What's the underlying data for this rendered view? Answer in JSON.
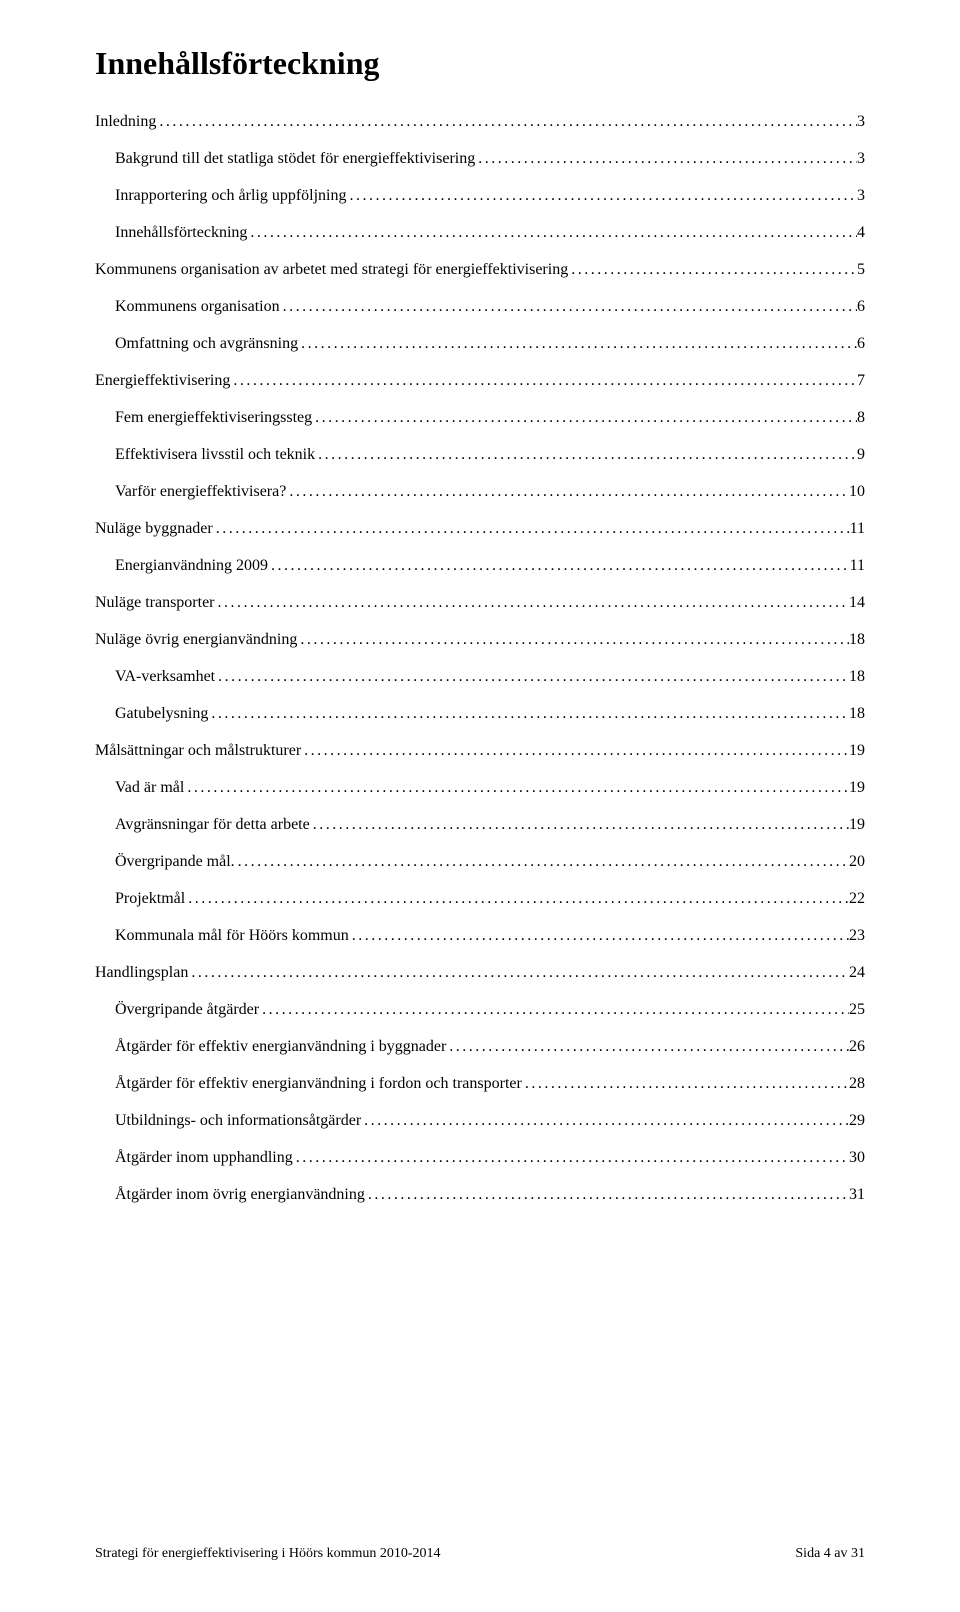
{
  "title": "Innehållsförteckning",
  "toc": [
    {
      "label": "Inledning",
      "page": "3",
      "indent": 0
    },
    {
      "label": "Bakgrund till det statliga stödet för energieffektivisering",
      "page": "3",
      "indent": 1
    },
    {
      "label": "Inrapportering och årlig uppföljning",
      "page": "3",
      "indent": 1
    },
    {
      "label": "Innehållsförteckning",
      "page": "4",
      "indent": 1
    },
    {
      "label": "Kommunens organisation av arbetet med strategi för energieffektivisering",
      "page": "5",
      "indent": 0
    },
    {
      "label": "Kommunens organisation",
      "page": "6",
      "indent": 1
    },
    {
      "label": "Omfattning och avgränsning",
      "page": "6",
      "indent": 1
    },
    {
      "label": "Energieffektivisering",
      "page": "7",
      "indent": 0
    },
    {
      "label": "Fem energieffektiviseringssteg",
      "page": "8",
      "indent": 1
    },
    {
      "label": "Effektivisera livsstil och teknik",
      "page": "9",
      "indent": 1
    },
    {
      "label": "Varför energieffektivisera?",
      "page": "10",
      "indent": 1
    },
    {
      "label": "Nuläge byggnader",
      "page": "11",
      "indent": 0
    },
    {
      "label": "Energianvändning 2009",
      "page": "11",
      "indent": 1
    },
    {
      "label": "Nuläge transporter",
      "page": "14",
      "indent": 0
    },
    {
      "label": "Nuläge övrig energianvändning",
      "page": "18",
      "indent": 0
    },
    {
      "label": "VA-verksamhet",
      "page": "18",
      "indent": 1
    },
    {
      "label": "Gatubelysning",
      "page": "18",
      "indent": 1
    },
    {
      "label": "Målsättningar och målstrukturer",
      "page": "19",
      "indent": 0
    },
    {
      "label": "Vad är mål",
      "page": "19",
      "indent": 1
    },
    {
      "label": "Avgränsningar för detta arbete",
      "page": "19",
      "indent": 1
    },
    {
      "label": "Övergripande mål.",
      "page": "20",
      "indent": 1
    },
    {
      "label": "Projektmål",
      "page": "22",
      "indent": 1
    },
    {
      "label": "Kommunala mål för Höörs kommun",
      "page": "23",
      "indent": 1
    },
    {
      "label": "Handlingsplan",
      "page": "24",
      "indent": 0
    },
    {
      "label": "Övergripande åtgärder",
      "page": "25",
      "indent": 1
    },
    {
      "label": "Åtgärder för effektiv energianvändning i byggnader",
      "page": "26",
      "indent": 1
    },
    {
      "label": "Åtgärder för effektiv energianvändning i fordon och transporter",
      "page": "28",
      "indent": 1
    },
    {
      "label": "Utbildnings- och informationsåtgärder",
      "page": "29",
      "indent": 1
    },
    {
      "label": "Åtgärder inom upphandling",
      "page": "30",
      "indent": 1
    },
    {
      "label": "Åtgärder inom övrig energianvändning",
      "page": "31",
      "indent": 1
    }
  ],
  "footer": {
    "left": "Strategi för energieffektivisering i Höörs kommun 2010-2014",
    "right": "Sida 4 av 31"
  }
}
